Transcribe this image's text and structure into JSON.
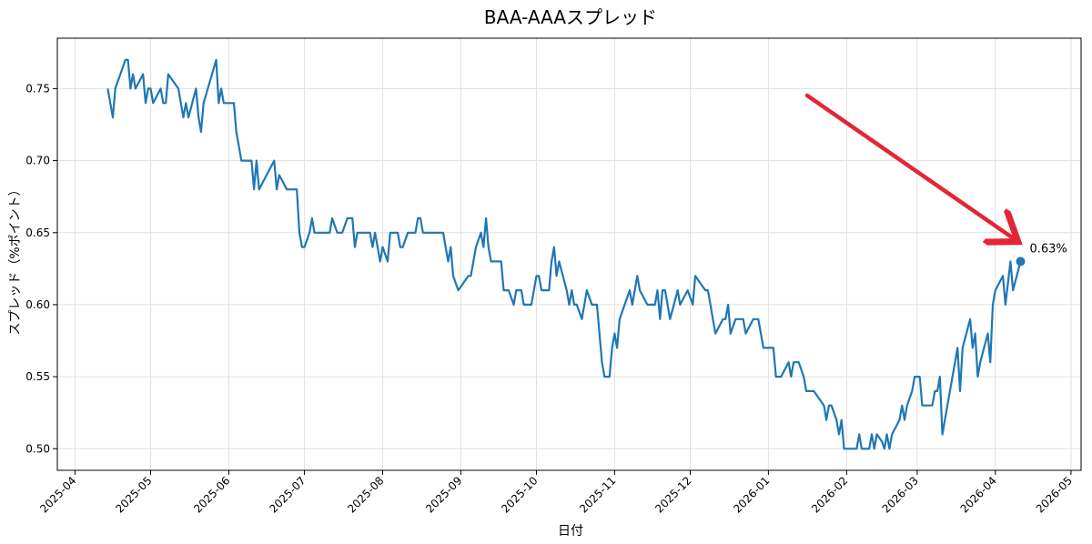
{
  "chart_data": {
    "type": "line",
    "title": "BAA-AAAスプレッド",
    "xlabel": "日付",
    "ylabel": "スプレッド（%ポイント）",
    "x_ticks": [
      "2025-04",
      "2025-05",
      "2025-06",
      "2025-07",
      "2025-08",
      "2025-09",
      "2025-10",
      "2025-11",
      "2025-12",
      "2026-01",
      "2026-02",
      "2026-03",
      "2026-04",
      "2026-05"
    ],
    "y_ticks": [
      "0.50",
      "0.55",
      "0.60",
      "0.65",
      "0.70",
      "0.75"
    ],
    "xlim": [
      "2025-03-25",
      "2026-05-05"
    ],
    "ylim": [
      0.485,
      0.785
    ],
    "grid": true,
    "color": "#1f77b4",
    "annotation_arrow_color": "#e32636",
    "last_point_label": "0.63%",
    "series": [
      {
        "points": [
          [
            "2025-04-14",
            0.75
          ],
          [
            "2025-04-16",
            0.73
          ],
          [
            "2025-04-17",
            0.75
          ],
          [
            "2025-04-21",
            0.77
          ],
          [
            "2025-04-22",
            0.77
          ],
          [
            "2025-04-23",
            0.75
          ],
          [
            "2025-04-24",
            0.76
          ],
          [
            "2025-04-25",
            0.75
          ],
          [
            "2025-04-28",
            0.76
          ],
          [
            "2025-04-29",
            0.74
          ],
          [
            "2025-04-30",
            0.75
          ],
          [
            "2025-05-01",
            0.75
          ],
          [
            "2025-05-02",
            0.74
          ],
          [
            "2025-05-05",
            0.75
          ],
          [
            "2025-05-06",
            0.74
          ],
          [
            "2025-05-07",
            0.74
          ],
          [
            "2025-05-08",
            0.76
          ],
          [
            "2025-05-12",
            0.75
          ],
          [
            "2025-05-14",
            0.73
          ],
          [
            "2025-05-15",
            0.74
          ],
          [
            "2025-05-16",
            0.73
          ],
          [
            "2025-05-19",
            0.75
          ],
          [
            "2025-05-20",
            0.73
          ],
          [
            "2025-05-21",
            0.72
          ],
          [
            "2025-05-22",
            0.74
          ],
          [
            "2025-05-27",
            0.77
          ],
          [
            "2025-05-28",
            0.74
          ],
          [
            "2025-05-29",
            0.75
          ],
          [
            "2025-05-30",
            0.74
          ],
          [
            "2025-06-02",
            0.74
          ],
          [
            "2025-06-03",
            0.74
          ],
          [
            "2025-06-04",
            0.72
          ],
          [
            "2025-06-06",
            0.7
          ],
          [
            "2025-06-09",
            0.7
          ],
          [
            "2025-06-10",
            0.7
          ],
          [
            "2025-06-11",
            0.68
          ],
          [
            "2025-06-12",
            0.7
          ],
          [
            "2025-06-13",
            0.68
          ],
          [
            "2025-06-16",
            0.69
          ],
          [
            "2025-06-19",
            0.7
          ],
          [
            "2025-06-20",
            0.68
          ],
          [
            "2025-06-21",
            0.69
          ],
          [
            "2025-06-24",
            0.68
          ],
          [
            "2025-06-27",
            0.68
          ],
          [
            "2025-06-28",
            0.68
          ],
          [
            "2025-06-29",
            0.65
          ],
          [
            "2025-06-30",
            0.64
          ],
          [
            "2025-07-01",
            0.64
          ],
          [
            "2025-07-03",
            0.65
          ],
          [
            "2025-07-04",
            0.66
          ],
          [
            "2025-07-05",
            0.65
          ],
          [
            "2025-07-08",
            0.65
          ],
          [
            "2025-07-11",
            0.65
          ],
          [
            "2025-07-12",
            0.66
          ],
          [
            "2025-07-14",
            0.65
          ],
          [
            "2025-07-16",
            0.65
          ],
          [
            "2025-07-18",
            0.66
          ],
          [
            "2025-07-20",
            0.66
          ],
          [
            "2025-07-21",
            0.64
          ],
          [
            "2025-07-22",
            0.65
          ],
          [
            "2025-07-25",
            0.65
          ],
          [
            "2025-07-27",
            0.65
          ],
          [
            "2025-07-28",
            0.64
          ],
          [
            "2025-07-29",
            0.65
          ],
          [
            "2025-07-30",
            0.64
          ],
          [
            "2025-07-31",
            0.63
          ],
          [
            "2025-08-01",
            0.64
          ],
          [
            "2025-08-03",
            0.63
          ],
          [
            "2025-08-04",
            0.65
          ],
          [
            "2025-08-05",
            0.65
          ],
          [
            "2025-08-07",
            0.65
          ],
          [
            "2025-08-08",
            0.64
          ],
          [
            "2025-08-09",
            0.64
          ],
          [
            "2025-08-11",
            0.65
          ],
          [
            "2025-08-12",
            0.65
          ],
          [
            "2025-08-13",
            0.65
          ],
          [
            "2025-08-14",
            0.65
          ],
          [
            "2025-08-15",
            0.66
          ],
          [
            "2025-08-16",
            0.66
          ],
          [
            "2025-08-17",
            0.65
          ],
          [
            "2025-08-18",
            0.65
          ],
          [
            "2025-08-25",
            0.65
          ],
          [
            "2025-08-26",
            0.64
          ],
          [
            "2025-08-27",
            0.63
          ],
          [
            "2025-08-28",
            0.64
          ],
          [
            "2025-08-29",
            0.62
          ],
          [
            "2025-08-31",
            0.61
          ],
          [
            "2025-09-02",
            0.615
          ],
          [
            "2025-09-04",
            0.62
          ],
          [
            "2025-09-05",
            0.62
          ],
          [
            "2025-09-07",
            0.64
          ],
          [
            "2025-09-09",
            0.65
          ],
          [
            "2025-09-10",
            0.64
          ],
          [
            "2025-09-11",
            0.66
          ],
          [
            "2025-09-12",
            0.64
          ],
          [
            "2025-09-13",
            0.63
          ],
          [
            "2025-09-15",
            0.63
          ],
          [
            "2025-09-17",
            0.63
          ],
          [
            "2025-09-18",
            0.61
          ],
          [
            "2025-09-20",
            0.61
          ],
          [
            "2025-09-22",
            0.6
          ],
          [
            "2025-09-23",
            0.61
          ],
          [
            "2025-09-25",
            0.61
          ],
          [
            "2025-09-26",
            0.6
          ],
          [
            "2025-09-28",
            0.6
          ],
          [
            "2025-09-29",
            0.6
          ],
          [
            "2025-10-01",
            0.62
          ],
          [
            "2025-10-02",
            0.62
          ],
          [
            "2025-10-03",
            0.61
          ],
          [
            "2025-10-05",
            0.61
          ],
          [
            "2025-10-06",
            0.61
          ],
          [
            "2025-10-07",
            0.63
          ],
          [
            "2025-10-08",
            0.64
          ],
          [
            "2025-10-09",
            0.62
          ],
          [
            "2025-10-10",
            0.63
          ],
          [
            "2025-10-13",
            0.61
          ],
          [
            "2025-10-14",
            0.6
          ],
          [
            "2025-10-15",
            0.61
          ],
          [
            "2025-10-16",
            0.6
          ],
          [
            "2025-10-17",
            0.6
          ],
          [
            "2025-10-19",
            0.59
          ],
          [
            "2025-10-21",
            0.61
          ],
          [
            "2025-10-23",
            0.6
          ],
          [
            "2025-10-25",
            0.6
          ],
          [
            "2025-10-27",
            0.56
          ],
          [
            "2025-10-28",
            0.55
          ],
          [
            "2025-10-30",
            0.55
          ],
          [
            "2025-10-31",
            0.57
          ],
          [
            "2025-11-01",
            0.58
          ],
          [
            "2025-11-02",
            0.57
          ],
          [
            "2025-11-03",
            0.59
          ],
          [
            "2025-11-07",
            0.61
          ],
          [
            "2025-11-08",
            0.6
          ],
          [
            "2025-11-10",
            0.62
          ],
          [
            "2025-11-11",
            0.61
          ],
          [
            "2025-11-14",
            0.6
          ],
          [
            "2025-11-17",
            0.6
          ],
          [
            "2025-11-18",
            0.61
          ],
          [
            "2025-11-19",
            0.59
          ],
          [
            "2025-11-20",
            0.61
          ],
          [
            "2025-11-21",
            0.61
          ],
          [
            "2025-11-22",
            0.6
          ],
          [
            "2025-11-23",
            0.59
          ],
          [
            "2025-11-26",
            0.61
          ],
          [
            "2025-11-27",
            0.6
          ],
          [
            "2025-11-30",
            0.61
          ],
          [
            "2025-12-02",
            0.6
          ],
          [
            "2025-12-03",
            0.62
          ],
          [
            "2025-12-07",
            0.61
          ],
          [
            "2025-12-08",
            0.61
          ],
          [
            "2025-12-09",
            0.6
          ],
          [
            "2025-12-10",
            0.59
          ],
          [
            "2025-12-11",
            0.58
          ],
          [
            "2025-12-14",
            0.59
          ],
          [
            "2025-12-15",
            0.59
          ],
          [
            "2025-12-16",
            0.6
          ],
          [
            "2025-12-17",
            0.58
          ],
          [
            "2025-12-19",
            0.59
          ],
          [
            "2025-12-22",
            0.59
          ],
          [
            "2025-12-23",
            0.58
          ],
          [
            "2025-12-26",
            0.59
          ],
          [
            "2025-12-27",
            0.59
          ],
          [
            "2025-12-28",
            0.59
          ],
          [
            "2025-12-29",
            0.58
          ],
          [
            "2025-12-30",
            0.57
          ],
          [
            "2026-01-03",
            0.57
          ],
          [
            "2026-01-04",
            0.55
          ],
          [
            "2026-01-06",
            0.55
          ],
          [
            "2026-01-09",
            0.56
          ],
          [
            "2026-01-10",
            0.55
          ],
          [
            "2026-01-11",
            0.56
          ],
          [
            "2026-01-13",
            0.56
          ],
          [
            "2026-01-15",
            0.55
          ],
          [
            "2026-01-16",
            0.54
          ],
          [
            "2026-01-18",
            0.54
          ],
          [
            "2026-01-19",
            0.54
          ],
          [
            "2026-01-23",
            0.53
          ],
          [
            "2026-01-24",
            0.52
          ],
          [
            "2026-01-25",
            0.53
          ],
          [
            "2026-01-26",
            0.53
          ],
          [
            "2026-01-28",
            0.52
          ],
          [
            "2026-01-29",
            0.51
          ],
          [
            "2026-01-30",
            0.52
          ],
          [
            "2026-01-31",
            0.5
          ],
          [
            "2026-02-03",
            0.5
          ],
          [
            "2026-02-05",
            0.5
          ],
          [
            "2026-02-06",
            0.51
          ],
          [
            "2026-02-07",
            0.5
          ],
          [
            "2026-02-10",
            0.5
          ],
          [
            "2026-02-11",
            0.51
          ],
          [
            "2026-02-12",
            0.5
          ],
          [
            "2026-02-13",
            0.51
          ],
          [
            "2026-02-15",
            0.505
          ],
          [
            "2026-02-16",
            0.5
          ],
          [
            "2026-02-17",
            0.51
          ],
          [
            "2026-02-18",
            0.5
          ],
          [
            "2026-02-19",
            0.51
          ],
          [
            "2026-02-22",
            0.52
          ],
          [
            "2026-02-23",
            0.53
          ],
          [
            "2026-02-24",
            0.52
          ],
          [
            "2026-02-25",
            0.53
          ],
          [
            "2026-02-27",
            0.54
          ],
          [
            "2026-02-28",
            0.55
          ],
          [
            "2026-03-02",
            0.55
          ],
          [
            "2026-03-03",
            0.53
          ],
          [
            "2026-03-07",
            0.53
          ],
          [
            "2026-03-08",
            0.54
          ],
          [
            "2026-03-09",
            0.54
          ],
          [
            "2026-03-10",
            0.55
          ],
          [
            "2026-03-11",
            0.51
          ],
          [
            "2026-03-13",
            0.53
          ],
          [
            "2026-03-16",
            0.56
          ],
          [
            "2026-03-17",
            0.57
          ],
          [
            "2026-03-18",
            0.54
          ],
          [
            "2026-03-19",
            0.57
          ],
          [
            "2026-03-22",
            0.59
          ],
          [
            "2026-03-23",
            0.57
          ],
          [
            "2026-03-24",
            0.58
          ],
          [
            "2026-03-25",
            0.55
          ],
          [
            "2026-03-26",
            0.56
          ],
          [
            "2026-03-29",
            0.58
          ],
          [
            "2026-03-30",
            0.56
          ],
          [
            "2026-03-31",
            0.6
          ],
          [
            "2026-04-01",
            0.61
          ],
          [
            "2026-04-04",
            0.62
          ],
          [
            "2026-04-05",
            0.6
          ],
          [
            "2026-04-07",
            0.63
          ],
          [
            "2026-04-08",
            0.61
          ],
          [
            "2026-04-11",
            0.63
          ]
        ]
      }
    ]
  }
}
